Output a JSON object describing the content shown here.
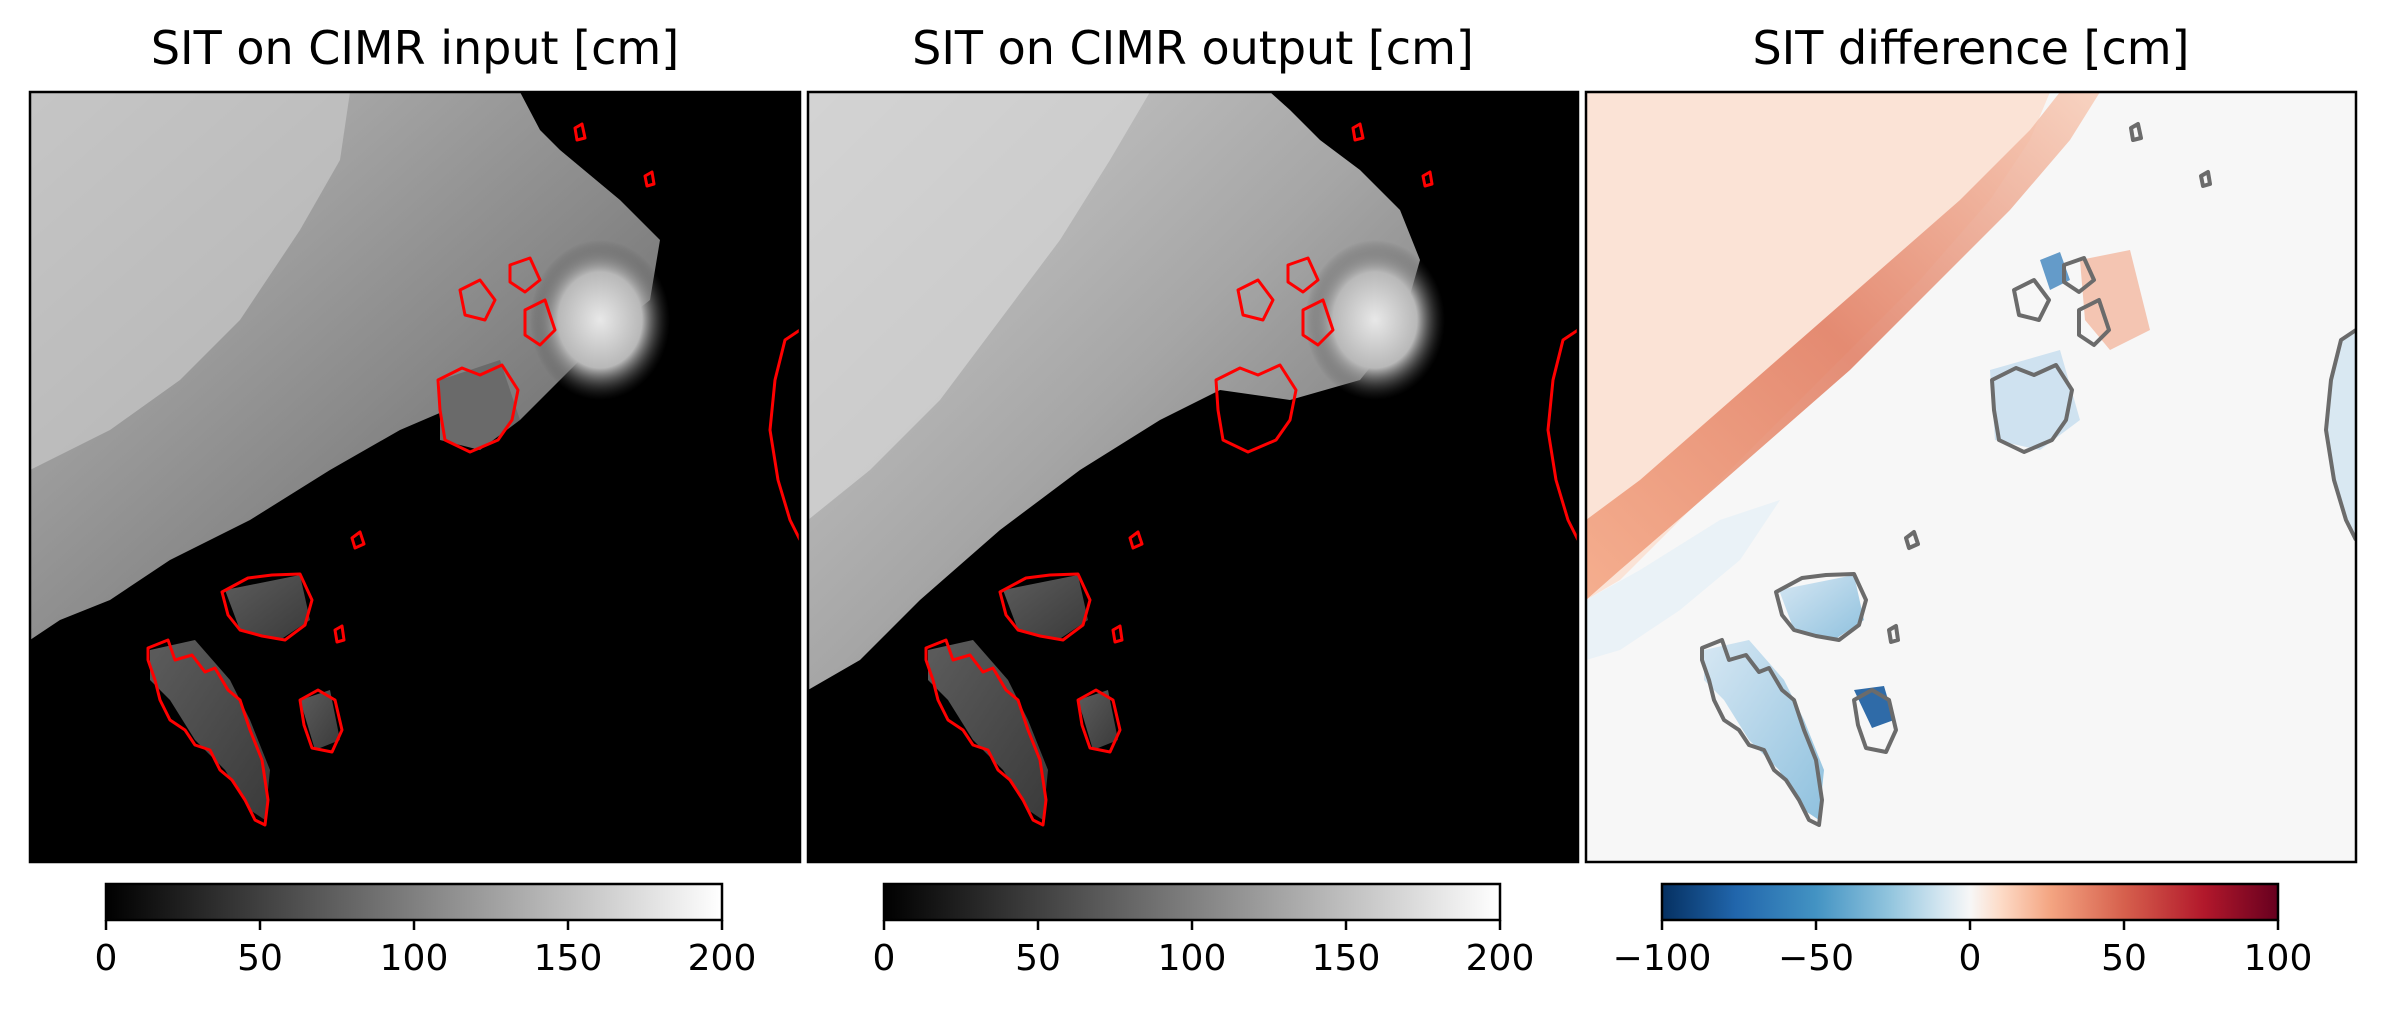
{
  "chart_data": [
    {
      "type": "heatmap",
      "title": "SIT on CIMR input [cm]",
      "xlabel": "",
      "ylabel": "",
      "colormap": "gray",
      "colorbar": {
        "range": [
          0,
          200
        ],
        "ticks": [
          0,
          50,
          100,
          150,
          200
        ],
        "tick_labels": [
          "0",
          "50",
          "100",
          "150",
          "200"
        ]
      },
      "coastline_color": "#ff0000",
      "description_values": {
        "thick_ice_upper_left": 160,
        "open_water_lower_right": 0,
        "ice_near_islands": 120
      }
    },
    {
      "type": "heatmap",
      "title": "SIT on CIMR output [cm]",
      "xlabel": "",
      "ylabel": "",
      "colormap": "gray",
      "colorbar": {
        "range": [
          0,
          200
        ],
        "ticks": [
          0,
          50,
          100,
          150,
          200
        ],
        "tick_labels": [
          "0",
          "50",
          "100",
          "150",
          "200"
        ]
      },
      "coastline_color": "#ff0000",
      "description_values": {
        "thick_ice_upper_left": 165,
        "open_water_lower_right": 0,
        "ice_near_islands": 125
      }
    },
    {
      "type": "heatmap",
      "title": "SIT difference [cm]",
      "xlabel": "",
      "ylabel": "",
      "colormap": "RdBu_r",
      "colorbar": {
        "range": [
          -100,
          100
        ],
        "ticks": [
          -100,
          -50,
          0,
          50,
          100
        ],
        "tick_labels": [
          "−100",
          "−50",
          "0",
          "50",
          "100"
        ]
      },
      "coastline_color": "#6b6b6b",
      "description_values": {
        "ice_edge_band": 40,
        "land_areas": -30,
        "open_water": 0
      }
    }
  ]
}
